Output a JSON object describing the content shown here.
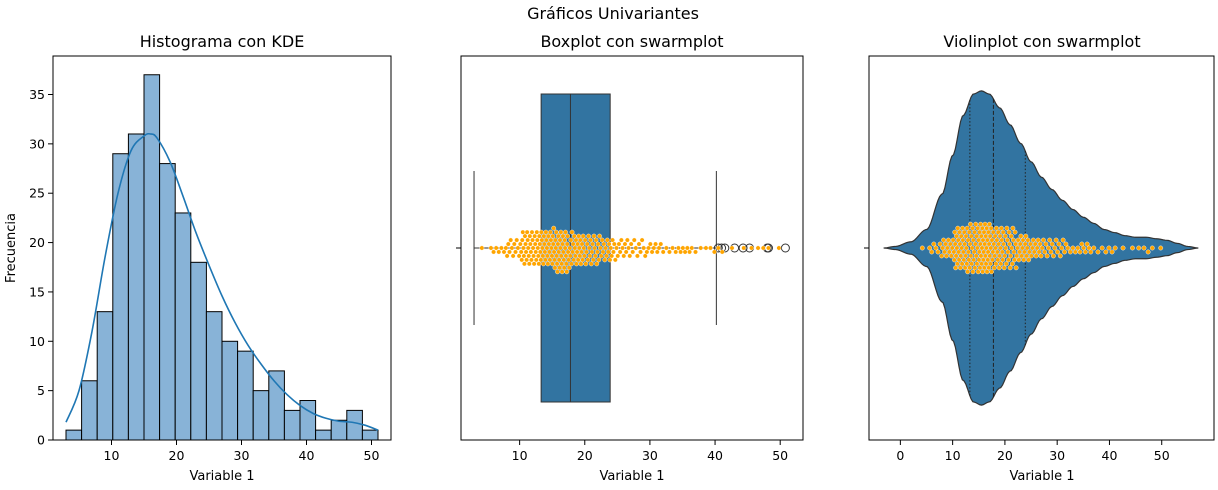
{
  "figure": {
    "suptitle": "Gráficos Univariantes"
  },
  "chart_data": [
    {
      "type": "bar",
      "title": "Histograma con KDE",
      "xlabel": "Variable 1",
      "ylabel": "Frecuencia",
      "xlim": [
        1.0,
        53.0
      ],
      "ylim": [
        0,
        38.9
      ],
      "xticks": [
        10,
        20,
        30,
        40,
        50
      ],
      "yticks": [
        0,
        5,
        10,
        15,
        20,
        25,
        30,
        35
      ],
      "bin_edges": [
        3.0,
        5.4,
        7.8,
        10.2,
        12.6,
        15.0,
        17.4,
        19.8,
        22.2,
        24.6,
        27.0,
        29.4,
        31.8,
        34.2,
        36.6,
        39.0,
        41.4,
        43.8,
        46.2,
        48.6,
        51.0
      ],
      "values": [
        1,
        6,
        13,
        29,
        31,
        37,
        28,
        23,
        18,
        13,
        10,
        9,
        5,
        7,
        3,
        4,
        1,
        2,
        3,
        1
      ],
      "bar_color": "#88b3d7",
      "kde": {
        "color": "#1f77b4",
        "x": [
          3,
          5,
          7,
          9,
          11,
          13,
          15,
          16,
          17,
          19,
          21,
          23,
          25,
          27,
          29,
          31,
          33,
          35,
          37,
          39,
          41,
          43,
          45,
          47,
          49,
          51
        ],
        "y": [
          1.8,
          5.0,
          11.0,
          18.5,
          25.0,
          29.3,
          30.8,
          31.0,
          30.6,
          28.2,
          24.7,
          21.0,
          17.7,
          14.6,
          11.9,
          9.6,
          7.7,
          6.0,
          4.6,
          3.5,
          2.7,
          2.2,
          1.9,
          1.8,
          1.5,
          1.0
        ]
      }
    },
    {
      "type": "box",
      "title": "Boxplot con swarmplot",
      "xlabel": "Variable 1",
      "xlim": [
        1.0,
        53.5
      ],
      "xticks": [
        10,
        20,
        30,
        40,
        50
      ],
      "box": {
        "whisker_low": 3.0,
        "q1": 13.3,
        "median": 17.8,
        "q3": 23.9,
        "whisker_high": 40.2,
        "color": "#3274a1"
      },
      "outliers": [
        40.5,
        41.0,
        41.5,
        43.0,
        44.3,
        45.3,
        48.0,
        48.2,
        50.8
      ],
      "swarm_color": "#ffa500"
    },
    {
      "type": "violin",
      "title": "Violinplot con swarmplot",
      "xlabel": "Variable 1",
      "xlim": [
        -6.0,
        60.0
      ],
      "xticks": [
        0,
        10,
        20,
        30,
        40,
        50
      ],
      "quartiles": [
        13.3,
        17.8,
        23.9
      ],
      "color": "#3274a1",
      "density": {
        "x": [
          -3.2,
          -1,
          2,
          5,
          8,
          10,
          12,
          14,
          15.5,
          17,
          19,
          21,
          23,
          25,
          27,
          29,
          31,
          33,
          35,
          37,
          39,
          41,
          43,
          45,
          47,
          49,
          51,
          53,
          55,
          57
        ],
        "half_width": [
          0.0,
          0.01,
          0.04,
          0.12,
          0.35,
          0.6,
          0.86,
          1.0,
          1.02,
          1.0,
          0.91,
          0.8,
          0.68,
          0.56,
          0.46,
          0.38,
          0.31,
          0.25,
          0.2,
          0.16,
          0.12,
          0.1,
          0.08,
          0.07,
          0.07,
          0.06,
          0.05,
          0.03,
          0.01,
          0.0
        ]
      },
      "swarm_color": "#ffa500"
    }
  ]
}
